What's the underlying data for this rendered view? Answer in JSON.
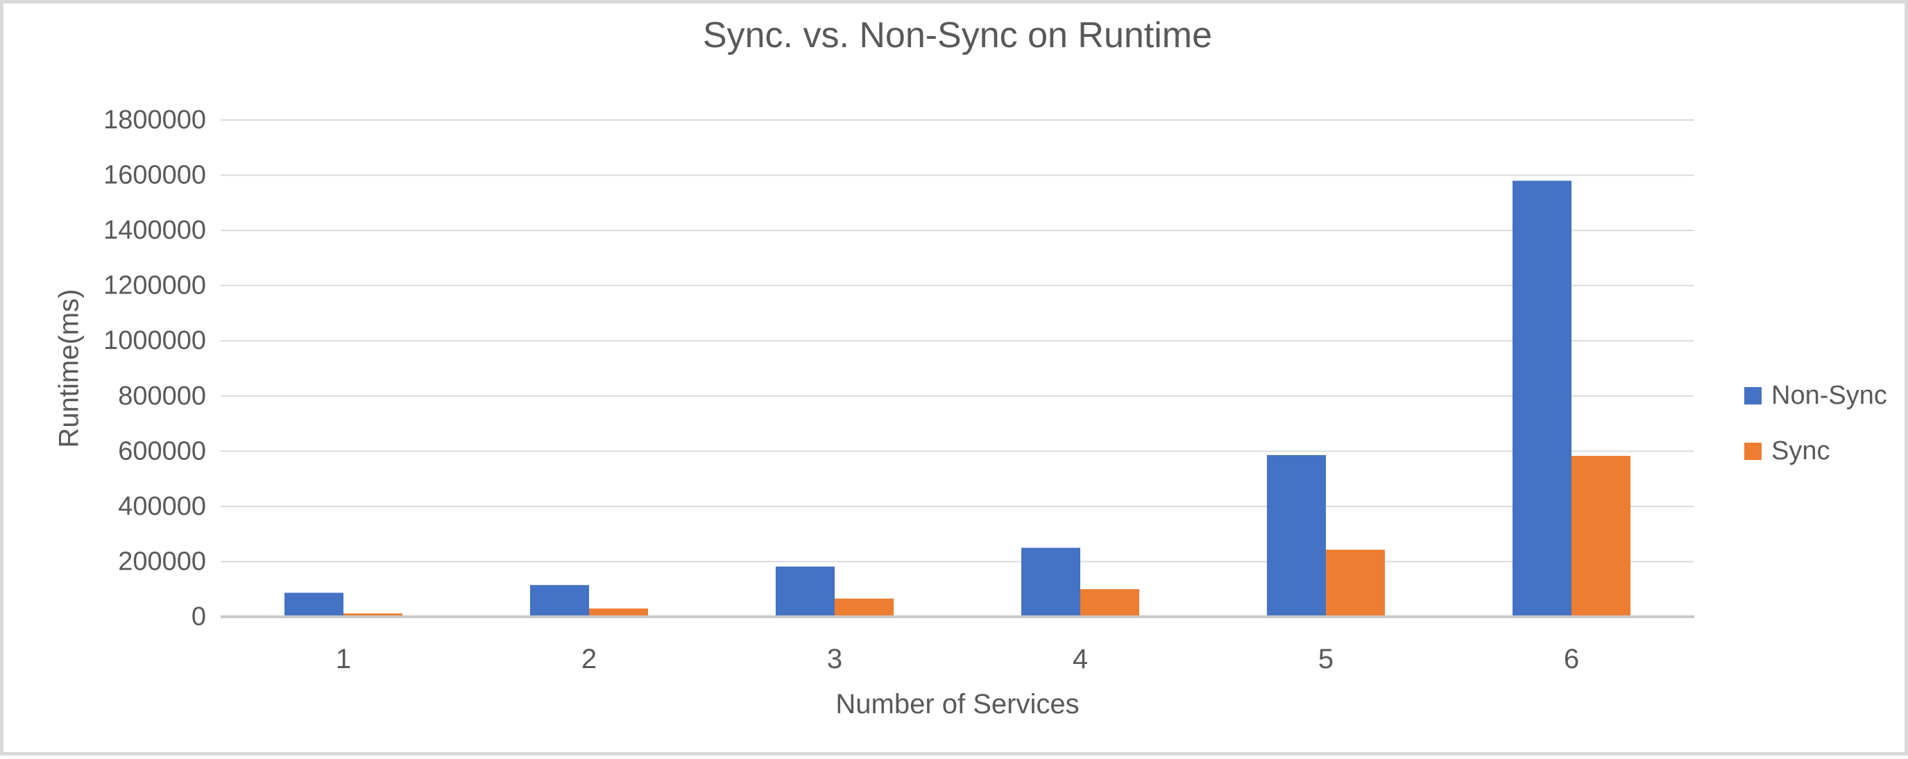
{
  "window": {
    "background": "#ffffff",
    "frame_border_color": "#d9d9d9"
  },
  "chart_data": {
    "type": "bar",
    "title": "Sync. vs. Non-Sync on Runtime",
    "xlabel": "Number of Services",
    "ylabel": "Runtime(ms)",
    "categories": [
      "1",
      "2",
      "3",
      "4",
      "5",
      "6"
    ],
    "series": [
      {
        "name": "Non-Sync",
        "color": "#4472C4",
        "values": [
          87000,
          115000,
          182000,
          250000,
          586000,
          1580000
        ]
      },
      {
        "name": "Sync",
        "color": "#ED7D31",
        "values": [
          12000,
          30000,
          66000,
          100000,
          243000,
          583000
        ]
      }
    ],
    "ylim": [
      0,
      1800000
    ],
    "ytick_step": 200000,
    "yticks": [
      0,
      200000,
      400000,
      600000,
      800000,
      1000000,
      1200000,
      1400000,
      1600000,
      1800000
    ],
    "ytick_labels": [
      "0",
      "200000",
      "400000",
      "600000",
      "800000",
      "1000000",
      "1200000",
      "1400000",
      "1600000",
      "1800000"
    ],
    "grid": true,
    "legend_position": "right",
    "text_color": "#595959",
    "gridline_color": "#dbdbdb",
    "axisline_color": "#c9c9c9"
  }
}
